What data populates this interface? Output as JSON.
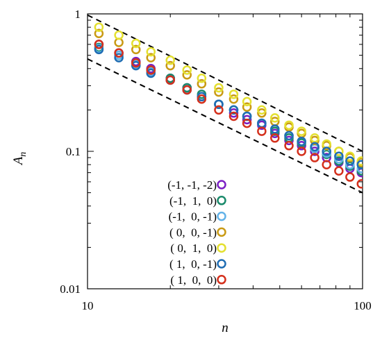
{
  "chart_data": {
    "type": "scatter",
    "title": "",
    "xlabel": "n",
    "ylabel": "A",
    "ylabel_subscript": "n",
    "x_scale": "log",
    "y_scale": "log",
    "xlim": [
      10,
      100
    ],
    "ylim": [
      0.01,
      1
    ],
    "x_ticks": [
      {
        "value": 10,
        "label": "10"
      },
      {
        "value": 100,
        "label": "100"
      }
    ],
    "y_ticks": [
      {
        "value": 0.01,
        "label": "0.01"
      },
      {
        "value": 0.1,
        "label": "0.1"
      },
      {
        "value": 1,
        "label": "1"
      }
    ],
    "legend_position": "bottom-center",
    "reference_lines": [
      {
        "style": "dashed",
        "color": "#000000",
        "points": [
          [
            10,
            0.98
          ],
          [
            100,
            0.1
          ]
        ]
      },
      {
        "style": "dashed",
        "color": "#000000",
        "points": [
          [
            10,
            0.47
          ],
          [
            100,
            0.05
          ]
        ]
      }
    ],
    "series": [
      {
        "name": "(-1, -1, -2)",
        "color": "#7b1fc4",
        "x": [
          11,
          13,
          15,
          17,
          20,
          23,
          26,
          30,
          34,
          38,
          43,
          48,
          54,
          60,
          67,
          74,
          82,
          90,
          99
        ],
        "y": [
          0.6,
          0.52,
          0.45,
          0.4,
          0.34,
          0.29,
          0.25,
          0.22,
          0.19,
          0.17,
          0.155,
          0.135,
          0.12,
          0.11,
          0.1,
          0.09,
          0.083,
          0.075,
          0.07
        ]
      },
      {
        "name": "(-1,  1,  0)",
        "color": "#1a8a6b",
        "x": [
          11,
          13,
          15,
          17,
          20,
          23,
          26,
          30,
          34,
          38,
          43,
          48,
          54,
          60,
          67,
          74,
          82,
          90,
          99
        ],
        "y": [
          0.57,
          0.5,
          0.44,
          0.39,
          0.34,
          0.29,
          0.26,
          0.22,
          0.2,
          0.18,
          0.16,
          0.14,
          0.125,
          0.115,
          0.105,
          0.095,
          0.085,
          0.078,
          0.072
        ]
      },
      {
        "name": "(-1,  0, -1)",
        "color": "#62b2e8",
        "x": [
          11,
          13,
          15,
          17,
          20,
          23,
          26,
          30,
          34,
          38,
          43,
          48,
          54,
          60,
          67,
          74,
          82,
          90,
          99
        ],
        "y": [
          0.56,
          0.5,
          0.43,
          0.38,
          0.33,
          0.28,
          0.25,
          0.22,
          0.2,
          0.18,
          0.16,
          0.145,
          0.13,
          0.118,
          0.105,
          0.097,
          0.088,
          0.08,
          0.075
        ]
      },
      {
        "name": "( 0,  0, -1)",
        "color": "#c99a14",
        "x": [
          11,
          13,
          15,
          17,
          20,
          23,
          26,
          30,
          34,
          38,
          43,
          48,
          54,
          60,
          67,
          74,
          82,
          90,
          99
        ],
        "y": [
          0.72,
          0.62,
          0.55,
          0.48,
          0.42,
          0.36,
          0.31,
          0.27,
          0.24,
          0.21,
          0.19,
          0.165,
          0.15,
          0.135,
          0.12,
          0.11,
          0.1,
          0.09,
          0.083
        ]
      },
      {
        "name": "( 0,  1,  0)",
        "color": "#e4e030",
        "x": [
          11,
          13,
          15,
          17,
          20,
          23,
          26,
          30,
          34,
          38,
          43,
          48,
          54,
          60,
          67,
          74,
          82,
          90,
          99
        ],
        "y": [
          0.8,
          0.7,
          0.61,
          0.53,
          0.46,
          0.39,
          0.34,
          0.29,
          0.26,
          0.23,
          0.2,
          0.175,
          0.155,
          0.14,
          0.125,
          0.113,
          0.1,
          0.092,
          0.085
        ]
      },
      {
        "name": "( 1,  0, -1)",
        "color": "#1f6db3",
        "x": [
          11,
          13,
          15,
          17,
          20,
          23,
          26,
          30,
          34,
          38,
          43,
          48,
          54,
          60,
          67,
          74,
          82,
          90,
          99
        ],
        "y": [
          0.55,
          0.48,
          0.42,
          0.37,
          0.33,
          0.28,
          0.25,
          0.22,
          0.2,
          0.18,
          0.16,
          0.145,
          0.13,
          0.118,
          0.108,
          0.1,
          0.092,
          0.085,
          0.08
        ]
      },
      {
        "name": "( 1,  0,  0)",
        "color": "#d4301c",
        "x": [
          11,
          13,
          15,
          17,
          20,
          23,
          26,
          30,
          34,
          38,
          43,
          48,
          54,
          60,
          67,
          74,
          82,
          90,
          99
        ],
        "y": [
          0.6,
          0.52,
          0.44,
          0.39,
          0.33,
          0.28,
          0.24,
          0.2,
          0.18,
          0.16,
          0.14,
          0.125,
          0.11,
          0.1,
          0.09,
          0.08,
          0.072,
          0.065,
          0.058
        ]
      }
    ]
  }
}
